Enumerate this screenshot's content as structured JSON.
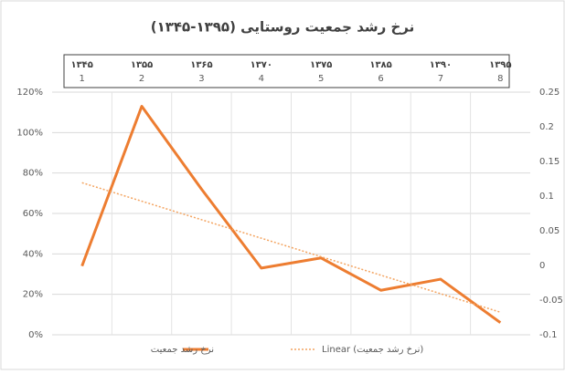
{
  "chart_data": {
    "type": "line",
    "title": "نرخ رشد جمعیت روستایی (۱۳۹۵-۱۳۴۵)",
    "categories": [
      "1",
      "2",
      "3",
      "4",
      "5",
      "6",
      "7",
      "8"
    ],
    "secondary_categories": [
      "۱۳۴۵",
      "۱۳۵۵",
      "۱۳۶۵",
      "۱۳۷۰",
      "۱۳۷۵",
      "۱۳۸۵",
      "۱۳۹۰",
      "۱۳۹۵"
    ],
    "series": [
      {
        "name": "نرخ رشد جمعیت",
        "color": "#ed7d31",
        "values": [
          34,
          113,
          72,
          33,
          38,
          22,
          27.5,
          6
        ]
      }
    ],
    "trendline": {
      "type": "linear",
      "name": "Linear (نرخ رشد جمعیت)",
      "color": "#f4a460"
    },
    "ylim": [
      0,
      120
    ],
    "yticks": [
      {
        "value": 0,
        "label": "0%"
      },
      {
        "value": 20,
        "label": "20%"
      },
      {
        "value": 40,
        "label": "40%"
      },
      {
        "value": 60,
        "label": "60%"
      },
      {
        "value": 80,
        "label": "80%"
      },
      {
        "value": 100,
        "label": "100%"
      },
      {
        "value": 120,
        "label": "120%"
      }
    ],
    "y2lim": [
      -0.1,
      0.25
    ],
    "y2ticks": [
      -0.1,
      -0.05,
      0,
      0.05,
      0.1,
      0.15,
      0.2,
      0.25
    ],
    "grid": true,
    "legend": "bottom"
  }
}
